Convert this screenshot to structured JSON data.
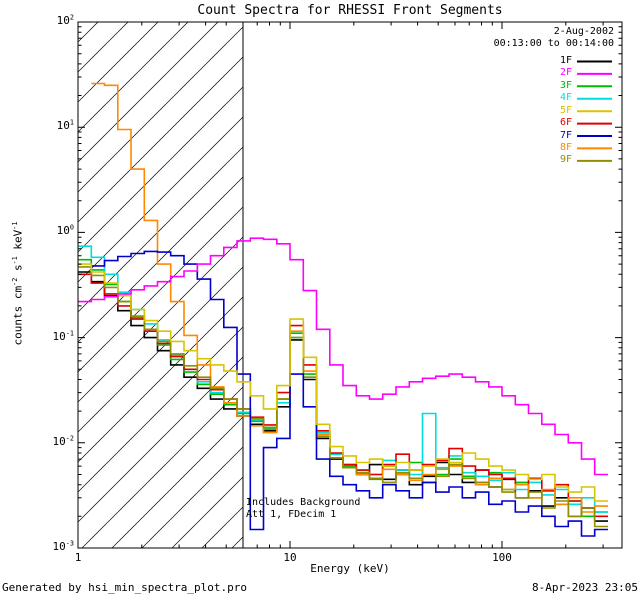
{
  "title": "Count Spectra for RHESSI Front Segments",
  "header": {
    "date": "2-Aug-2002",
    "time_range": "00:13:00 to 00:14:00"
  },
  "annotations": [
    "Includes Background",
    "Att 1, FDecim 1"
  ],
  "footer": {
    "left": "Generated by hsi_min_spectra_plot.pro",
    "right": "8-Apr-2023 23:05"
  },
  "axes": {
    "x_label": "Energy (keV)",
    "y_label_parts": [
      {
        "t": "counts cm"
      },
      {
        "t": "-2",
        "sup": true
      },
      {
        "t": " s"
      },
      {
        "t": "-1",
        "sup": true
      },
      {
        "t": " keV"
      },
      {
        "t": "-1",
        "sup": true
      }
    ],
    "x_ticks": [
      {
        "v": 1,
        "label": "1"
      },
      {
        "v": 10,
        "label": "10"
      },
      {
        "v": 100,
        "label": "100"
      }
    ],
    "y_tick_exponents": [
      2,
      1,
      0,
      -1,
      -2,
      -3
    ],
    "xlim": [
      1,
      368
    ],
    "ylim": [
      0.001,
      100
    ],
    "x_scale": "log",
    "y_scale": "log",
    "hatch_region_kev": [
      1,
      6
    ]
  },
  "chart_data": {
    "type": "line",
    "style": "stepped-histogram",
    "x_scale": "log",
    "y_scale": "log",
    "x_unit": "keV",
    "y_unit": "counts cm^-2 s^-1 keV^-1",
    "bin_edges_kev": [
      1.0,
      1.155,
      1.334,
      1.54,
      1.778,
      2.054,
      2.371,
      2.738,
      3.162,
      3.652,
      4.217,
      4.87,
      5.623,
      6.494,
      7.499,
      8.66,
      10.0,
      11.55,
      13.34,
      15.4,
      17.78,
      20.54,
      23.71,
      27.38,
      31.62,
      36.52,
      42.17,
      48.7,
      56.23,
      64.94,
      74.99,
      86.6,
      100.0,
      115.5,
      133.4,
      154.0,
      177.8,
      205.4,
      237.1,
      273.8,
      316.2
    ],
    "series": [
      {
        "name": "1F",
        "color": "#000000",
        "values": [
          0.42,
          0.34,
          0.25,
          0.18,
          0.13,
          0.1,
          0.075,
          0.055,
          0.042,
          0.033,
          0.026,
          0.021,
          0.018,
          0.015,
          0.013,
          0.022,
          0.095,
          0.04,
          0.011,
          0.007,
          0.0058,
          0.005,
          0.0062,
          0.0045,
          0.0055,
          0.004,
          0.0048,
          0.0065,
          0.005,
          0.0042,
          0.0055,
          0.0038,
          0.0045,
          0.003,
          0.0035,
          0.0025,
          0.003,
          0.002,
          0.0024,
          0.0018
        ]
      },
      {
        "name": "2F",
        "color": "#ff00ff",
        "values": [
          0.22,
          0.23,
          0.245,
          0.26,
          0.285,
          0.31,
          0.34,
          0.38,
          0.43,
          0.5,
          0.6,
          0.72,
          0.83,
          0.88,
          0.86,
          0.78,
          0.55,
          0.28,
          0.12,
          0.055,
          0.035,
          0.028,
          0.026,
          0.029,
          0.034,
          0.038,
          0.041,
          0.043,
          0.045,
          0.042,
          0.038,
          0.034,
          0.028,
          0.023,
          0.019,
          0.015,
          0.012,
          0.01,
          0.007,
          0.005
        ]
      },
      {
        "name": "3F",
        "color": "#00bb00",
        "values": [
          0.55,
          0.44,
          0.32,
          0.22,
          0.155,
          0.115,
          0.085,
          0.062,
          0.047,
          0.036,
          0.029,
          0.023,
          0.019,
          0.016,
          0.0135,
          0.026,
          0.11,
          0.045,
          0.012,
          0.0072,
          0.006,
          0.0052,
          0.0045,
          0.006,
          0.005,
          0.0065,
          0.0042,
          0.005,
          0.007,
          0.0048,
          0.0042,
          0.0052,
          0.0036,
          0.0042,
          0.003,
          0.0035,
          0.0026,
          0.0028,
          0.002,
          0.0022
        ]
      },
      {
        "name": "4F",
        "color": "#00dddd",
        "values": [
          0.74,
          0.58,
          0.4,
          0.27,
          0.185,
          0.135,
          0.095,
          0.068,
          0.05,
          0.038,
          0.03,
          0.024,
          0.0195,
          0.0165,
          0.014,
          0.024,
          0.1,
          0.042,
          0.0125,
          0.0078,
          0.0062,
          0.0055,
          0.005,
          0.0068,
          0.0055,
          0.005,
          0.019,
          0.0058,
          0.0075,
          0.0052,
          0.0048,
          0.0044,
          0.0052,
          0.0036,
          0.0042,
          0.0032,
          0.0036,
          0.0026,
          0.003,
          0.0022
        ]
      },
      {
        "name": "5F",
        "color": "#d8c400",
        "values": [
          0.5,
          0.42,
          0.33,
          0.25,
          0.185,
          0.145,
          0.115,
          0.092,
          0.075,
          0.063,
          0.055,
          0.048,
          0.038,
          0.028,
          0.021,
          0.035,
          0.15,
          0.065,
          0.015,
          0.0092,
          0.0075,
          0.0065,
          0.007,
          0.006,
          0.0065,
          0.0055,
          0.006,
          0.007,
          0.0065,
          0.008,
          0.007,
          0.006,
          0.0055,
          0.005,
          0.0045,
          0.005,
          0.0038,
          0.0034,
          0.0038,
          0.0028
        ]
      },
      {
        "name": "6F",
        "color": "#e00000",
        "values": [
          0.4,
          0.33,
          0.26,
          0.2,
          0.15,
          0.115,
          0.088,
          0.066,
          0.05,
          0.04,
          0.032,
          0.026,
          0.021,
          0.0175,
          0.0148,
          0.03,
          0.13,
          0.055,
          0.013,
          0.008,
          0.0062,
          0.0055,
          0.005,
          0.0062,
          0.0078,
          0.0055,
          0.0062,
          0.0068,
          0.0088,
          0.006,
          0.0055,
          0.005,
          0.0046,
          0.004,
          0.0046,
          0.0035,
          0.004,
          0.0028,
          0.0024,
          0.002
        ]
      },
      {
        "name": "7F",
        "color": "#0000cc",
        "values": [
          null,
          0.48,
          0.54,
          0.59,
          0.63,
          0.66,
          0.65,
          0.6,
          0.5,
          0.36,
          0.23,
          0.125,
          0.045,
          0.0015,
          0.009,
          0.011,
          0.045,
          0.022,
          0.007,
          0.0048,
          0.004,
          0.0035,
          0.003,
          0.004,
          0.0035,
          0.003,
          0.0042,
          0.0034,
          0.0038,
          0.003,
          0.0034,
          0.0026,
          0.0028,
          0.0022,
          0.0025,
          0.002,
          0.0016,
          0.0018,
          0.0013,
          0.0015
        ]
      },
      {
        "name": "8F",
        "color": "#ff8800",
        "values": [
          null,
          26,
          25,
          9.5,
          4.0,
          1.3,
          0.5,
          0.22,
          0.105,
          0.055,
          0.034,
          0.024,
          0.018,
          0.0145,
          0.0125,
          0.026,
          0.115,
          0.048,
          0.012,
          0.0072,
          0.0058,
          0.005,
          0.0046,
          0.0056,
          0.005,
          0.0044,
          0.005,
          0.0056,
          0.006,
          0.0046,
          0.004,
          0.0046,
          0.0036,
          0.004,
          0.003,
          0.0036,
          0.0026,
          0.003,
          0.0022,
          0.0025
        ]
      },
      {
        "name": "9F",
        "color": "#8f8f00",
        "values": [
          0.47,
          0.39,
          0.3,
          0.22,
          0.16,
          0.12,
          0.092,
          0.07,
          0.054,
          0.042,
          0.033,
          0.026,
          0.021,
          0.017,
          0.014,
          0.026,
          0.1,
          0.042,
          0.0115,
          0.0072,
          0.0058,
          0.0052,
          0.0046,
          0.0042,
          0.0052,
          0.0046,
          0.0042,
          0.0048,
          0.0062,
          0.0046,
          0.0042,
          0.0038,
          0.0034,
          0.003,
          0.0034,
          0.0024,
          0.0028,
          0.002,
          0.0024,
          0.0016
        ]
      }
    ]
  }
}
